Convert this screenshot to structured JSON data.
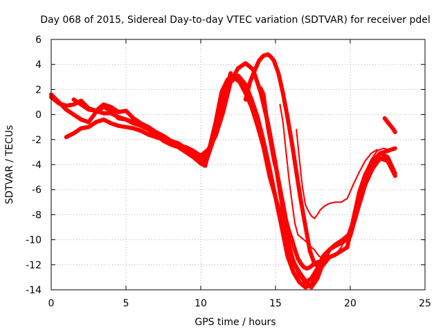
{
  "chart_data": {
    "type": "scatter",
    "title": "Day 068 of 2015, Sidereal Day-to-day VTEC variation (SDTVAR) for receiver pdel",
    "xlabel": "GPS time / hours",
    "ylabel": "SDTVAR / TECUs",
    "xlim": [
      0,
      25
    ],
    "ylim": [
      -14,
      6
    ],
    "xticks": [
      0,
      5,
      10,
      15,
      20,
      25
    ],
    "yticks": [
      -14,
      -12,
      -10,
      -8,
      -6,
      -4,
      -2,
      0,
      2,
      4,
      6
    ],
    "grid": true,
    "marker": "+",
    "color": "#ff0000",
    "series": [
      {
        "x": [
          0,
          0.5,
          1.0,
          1.5,
          2.0,
          2.5,
          3.0,
          3.5,
          4.0,
          4.5,
          5.0,
          5.5,
          6.0,
          6.5,
          7.0,
          7.5,
          8.0,
          8.5,
          9.0,
          9.5,
          10.0,
          10.3,
          10.6,
          11.0,
          11.4,
          11.8,
          12.2,
          12.6,
          13.0,
          13.4,
          13.8,
          14.2,
          14.6,
          15.0,
          15.4,
          15.8,
          16.2,
          16.6,
          17.0,
          17.4,
          17.8,
          18.2,
          18.6,
          19.0,
          19.4,
          19.8,
          20.2,
          20.6,
          21.0,
          21.5,
          22.0,
          22.5,
          23.0
        ],
        "y": [
          1.6,
          1.0,
          0.4,
          0.0,
          -0.4,
          -0.6,
          0.2,
          0.6,
          0.3,
          -0.3,
          -0.4,
          -0.7,
          -0.9,
          -1.0,
          -1.4,
          -1.7,
          -2.1,
          -2.3,
          -2.7,
          -3.2,
          -3.9,
          -4.1,
          -2.6,
          -0.6,
          1.8,
          2.8,
          3.0,
          2.6,
          1.7,
          0.6,
          -0.9,
          -2.6,
          -4.9,
          -6.6,
          -8.9,
          -11.3,
          -12.6,
          -13.4,
          -13.8,
          -13.6,
          -12.7,
          -12.0,
          -11.4,
          -11.2,
          -10.9,
          -10.6,
          -8.4,
          -6.2,
          -4.8,
          -3.7,
          -3.1,
          -2.9,
          -2.7
        ]
      },
      {
        "x": [
          1.0,
          1.5,
          2.0,
          2.5,
          3.0,
          3.5,
          4.0,
          4.5,
          5.0,
          5.5,
          6.0,
          6.5,
          7.0,
          7.5,
          8.0,
          8.5,
          9.0,
          9.5,
          10.0,
          10.5,
          11.0,
          11.5,
          12.0,
          12.5,
          13.0,
          13.4,
          13.8,
          14.2,
          14.6,
          15.0,
          15.4,
          15.8,
          16.2,
          16.6,
          17.0,
          17.4,
          17.8,
          18.2,
          18.6,
          19.0,
          19.5,
          20.0,
          20.4,
          20.8,
          21.2,
          21.6,
          22.0,
          22.5,
          23.0
        ],
        "y": [
          -1.8,
          -1.5,
          -1.1,
          -1.0,
          -0.6,
          -0.4,
          -0.7,
          -0.9,
          -1.0,
          -1.1,
          -1.3,
          -1.6,
          -1.8,
          -2.0,
          -2.3,
          -2.5,
          -2.8,
          -3.1,
          -3.5,
          -3.2,
          -1.3,
          1.0,
          2.6,
          3.1,
          2.4,
          1.2,
          -0.2,
          -2.1,
          -4.3,
          -6.6,
          -8.4,
          -10.3,
          -11.7,
          -12.8,
          -13.4,
          -13.1,
          -12.3,
          -11.3,
          -10.8,
          -10.4,
          -10.0,
          -9.5,
          -7.4,
          -5.8,
          -4.6,
          -3.6,
          -3.1,
          -3.4,
          -4.7
        ]
      },
      {
        "x": [
          1.5,
          2.0,
          2.5,
          3.0,
          3.5,
          4.0,
          4.5,
          5.0,
          5.5,
          6.0,
          6.5,
          7.0,
          7.5,
          8.0,
          8.5,
          9.0,
          9.5,
          10.0,
          10.5,
          11.0,
          11.5,
          12.0,
          12.5,
          13.0,
          13.5,
          14.0,
          14.5,
          15.0,
          15.4,
          15.8,
          16.2,
          16.6,
          17.0,
          17.4,
          17.8,
          18.2,
          18.6,
          19.0,
          19.5,
          20.0,
          20.5,
          21.0,
          21.5,
          22.0,
          22.5,
          23.0
        ],
        "y": [
          1.2,
          0.8,
          0.4,
          0.3,
          0.1,
          0.1,
          -0.2,
          -0.4,
          -0.6,
          -0.9,
          -1.2,
          -1.6,
          -2.0,
          -2.3,
          -2.5,
          -2.6,
          -2.9,
          -3.3,
          -2.8,
          -1.7,
          0.2,
          2.6,
          3.7,
          4.1,
          3.6,
          1.8,
          -0.7,
          -3.9,
          -6.9,
          -9.9,
          -11.8,
          -12.6,
          -13.3,
          -13.8,
          -13.1,
          -11.8,
          -10.8,
          -10.5,
          -10.2,
          -9.7,
          -7.6,
          -5.6,
          -4.3,
          -3.5,
          -3.7,
          -4.9
        ]
      },
      {
        "x": [
          0,
          0.5,
          1.0,
          1.5,
          2.0,
          2.5,
          3.0,
          3.5,
          4.0,
          4.5,
          5.0,
          5.5,
          6.0,
          6.5,
          7.0,
          7.5,
          8.0,
          8.5,
          9.0,
          9.5,
          10.0,
          10.4,
          10.8,
          11.2,
          11.6,
          12.0
        ],
        "y": [
          1.4,
          0.9,
          0.7,
          0.8,
          1.1,
          0.5,
          0.3,
          0.8,
          0.6,
          0.2,
          0.3,
          -0.3,
          -0.7,
          -1.0,
          -1.6,
          -2.1,
          -2.4,
          -2.6,
          -3.0,
          -3.4,
          -3.9,
          -3.6,
          -2.2,
          -0.1,
          1.6,
          3.3
        ]
      },
      {
        "x": [
          13.0,
          13.3,
          13.6,
          13.9,
          14.2,
          14.5,
          14.7,
          14.9,
          15.2,
          15.5,
          15.8,
          16.1,
          16.4,
          16.7,
          17.0,
          17.3,
          17.6,
          17.9
        ],
        "y": [
          1.2,
          2.6,
          3.5,
          4.3,
          4.7,
          4.8,
          4.6,
          4.3,
          3.3,
          1.7,
          -0.2,
          -2.3,
          -4.6,
          -6.9,
          -8.9,
          -10.9,
          -11.9,
          -12.2
        ]
      },
      {
        "x": [
          14.0,
          14.2,
          14.3,
          14.5,
          14.7,
          14.9,
          15.1,
          15.3,
          15.5,
          15.7,
          15.9,
          16.1,
          16.3,
          16.5,
          16.7,
          16.9,
          17.1,
          17.3,
          17.5,
          17.8,
          18.1
        ],
        "y": [
          2.1,
          1.6,
          0.6,
          -1.0,
          -2.3,
          -3.6,
          -4.6,
          -5.9,
          -7.1,
          -8.4,
          -9.3,
          -10.0,
          -10.8,
          -11.5,
          -11.9,
          -12.2,
          -12.3,
          -12.2,
          -12.0,
          -11.8,
          -11.7
        ]
      },
      {
        "x": [
          15.3,
          15.5,
          15.7,
          15.9,
          16.1,
          16.3,
          16.5,
          16.7,
          16.9,
          17.1,
          17.3,
          17.6,
          17.9,
          18.2,
          18.6,
          19.0,
          19.4,
          19.8,
          20.2,
          20.6,
          21.0,
          21.4,
          21.8,
          22.2,
          22.6,
          23.0
        ],
        "y": [
          0.8,
          -0.6,
          -2.9,
          -5.1,
          -7.0,
          -8.7,
          -9.6,
          -9.8,
          -10.0,
          -10.2,
          -10.5,
          -10.8,
          -11.3,
          -11.5,
          -11.4,
          -11.2,
          -10.6,
          -9.6,
          -8.2,
          -6.3,
          -4.6,
          -3.6,
          -2.9,
          -2.7,
          -2.8,
          -2.7
        ]
      },
      {
        "x": [
          16.4,
          16.6,
          16.8,
          17.0,
          17.2,
          17.4,
          17.6,
          17.8,
          18.0,
          18.3,
          18.6,
          19.0,
          19.4,
          19.8,
          20.2,
          20.6,
          21.0,
          21.4,
          21.8
        ],
        "y": [
          -1.2,
          -3.6,
          -5.8,
          -7.2,
          -7.7,
          -8.1,
          -8.3,
          -8.0,
          -7.6,
          -7.3,
          -7.1,
          -7.0,
          -7.0,
          -6.7,
          -5.6,
          -4.6,
          -3.7,
          -3.1,
          -2.8
        ]
      },
      {
        "x": [
          22.3,
          22.5,
          22.7,
          22.9,
          23.0
        ],
        "y": [
          -0.3,
          -0.6,
          -0.9,
          -1.2,
          -1.4
        ]
      }
    ]
  }
}
